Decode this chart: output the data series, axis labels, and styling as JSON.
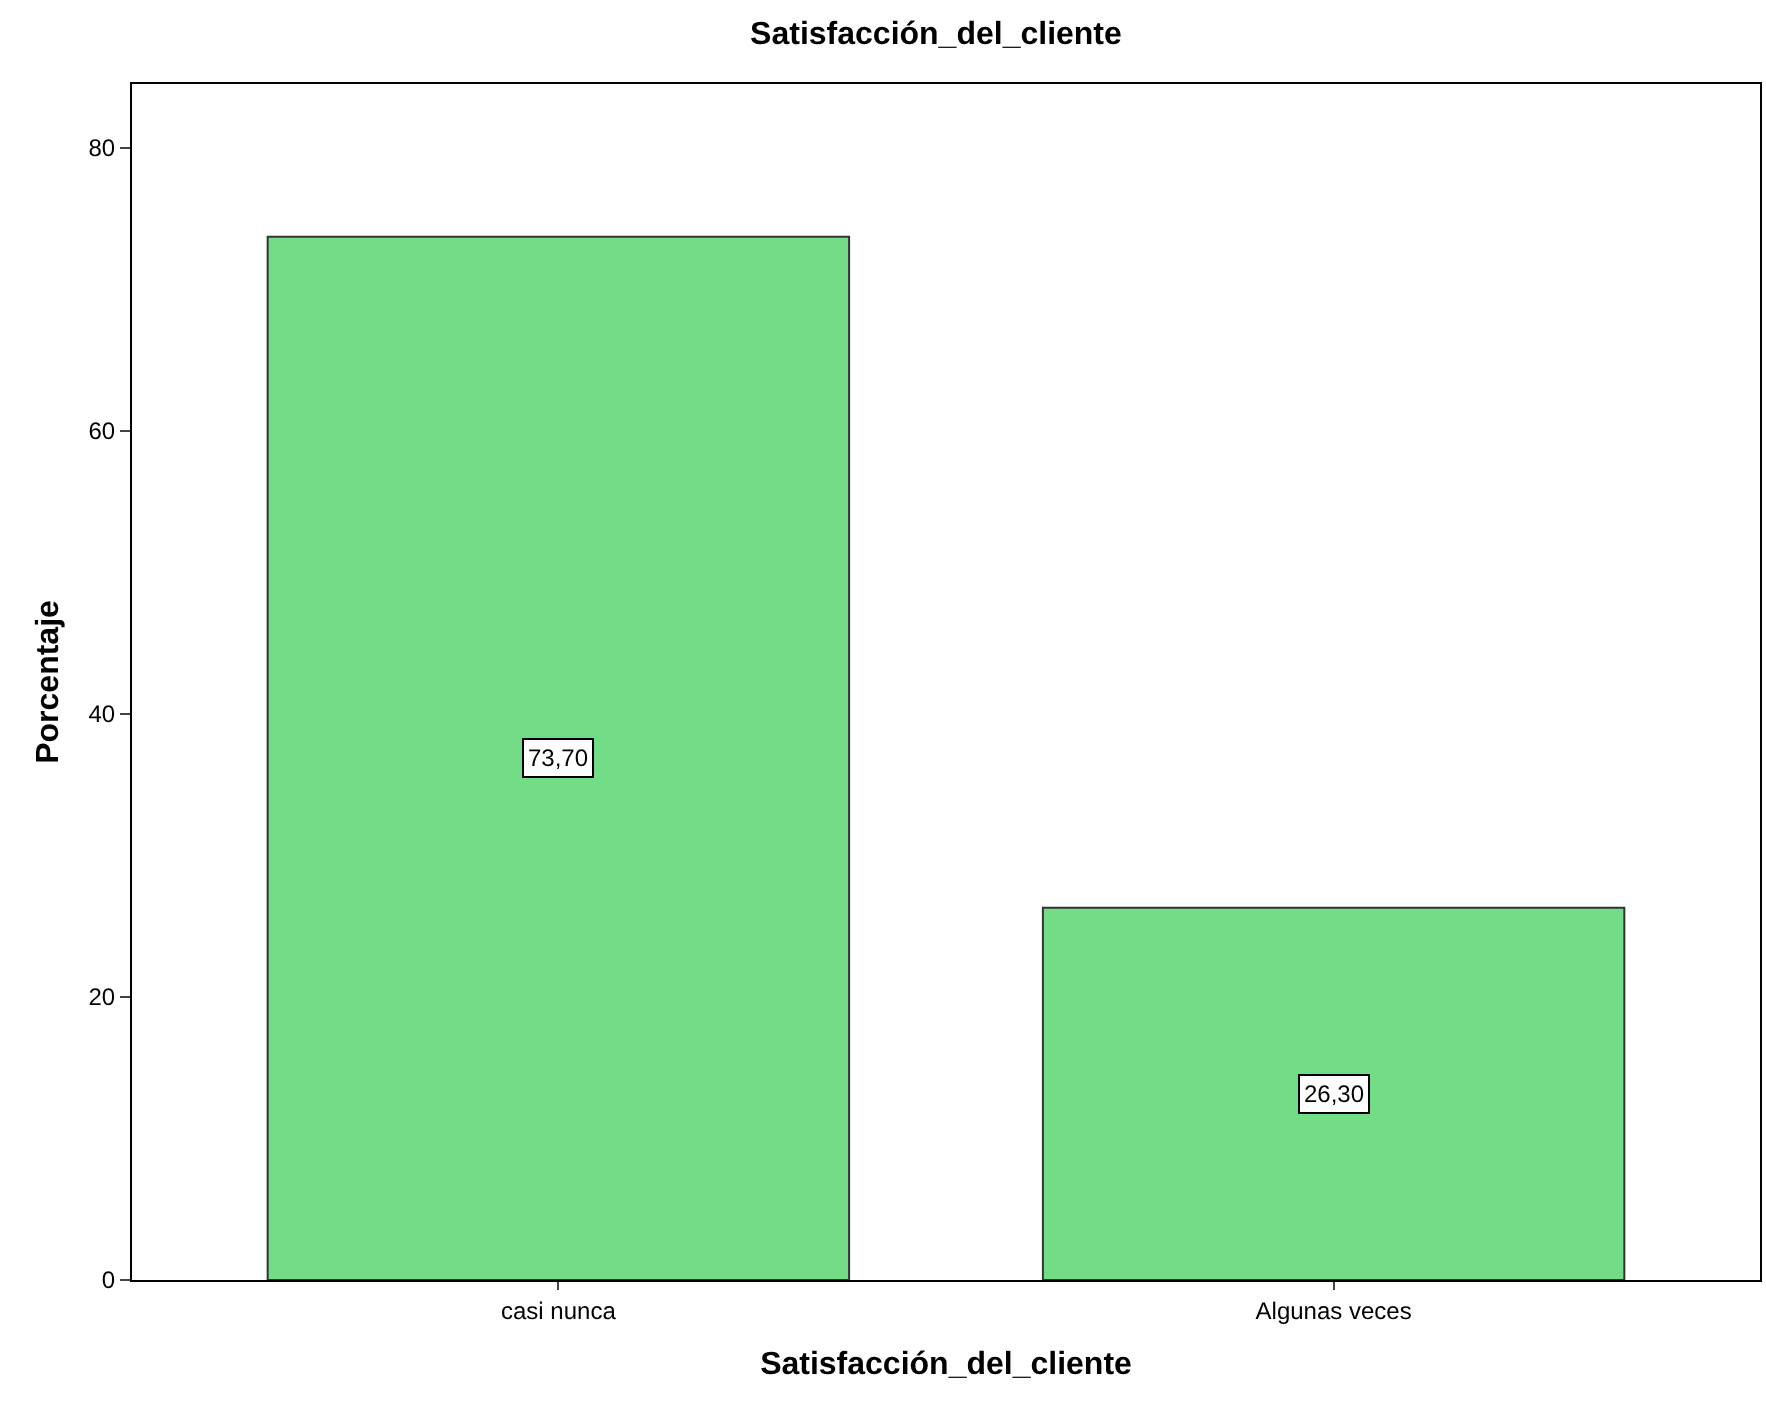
{
  "chart_data": {
    "type": "bar",
    "title": "Satisfacción_del_cliente",
    "xlabel": "Satisfacción_del_cliente",
    "ylabel": "Porcentaje",
    "categories": [
      "casi nunca",
      "Algunas veces"
    ],
    "values": [
      73.7,
      26.3
    ],
    "value_labels": [
      "73,70",
      "26,30"
    ],
    "color": "#72dc86",
    "ylim": [
      0,
      84.5
    ],
    "yticks": [
      0,
      20,
      40,
      60,
      80
    ],
    "grid": false
  }
}
